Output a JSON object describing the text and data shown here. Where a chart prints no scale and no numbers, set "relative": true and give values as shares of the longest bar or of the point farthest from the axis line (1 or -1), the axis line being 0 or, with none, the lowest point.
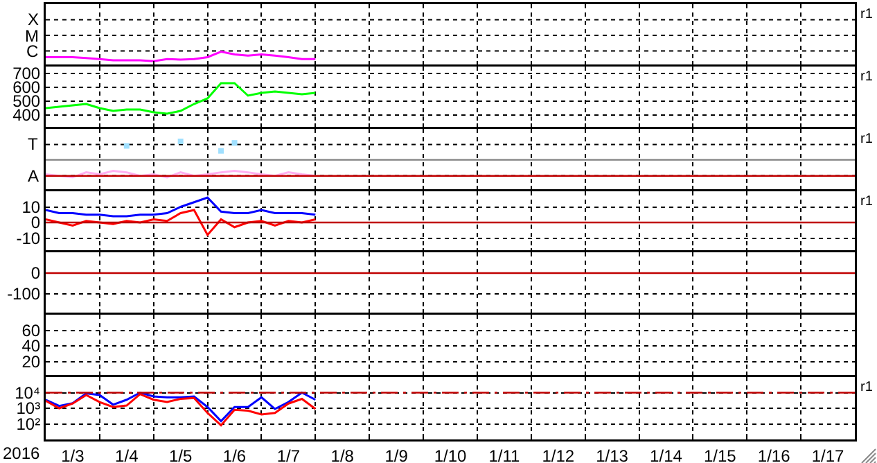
{
  "chart_data": [
    {
      "type": "line",
      "relative": true,
      "x": [
        "2016-01-03T00:00",
        "2016-01-03T06:00",
        "2016-01-03T12:00",
        "2016-01-03T18:00",
        "2016-01-04T00:00",
        "2016-01-04T06:00",
        "2016-01-04T12:00",
        "2016-01-04T18:00",
        "2016-01-05T00:00",
        "2016-01-05T06:00",
        "2016-01-05T12:00",
        "2016-01-05T18:00",
        "2016-01-06T00:00",
        "2016-01-06T06:00",
        "2016-01-06T12:00",
        "2016-01-06T18:00",
        "2016-01-07T00:00",
        "2016-01-07T06:00",
        "2016-01-07T12:00",
        "2016-01-07T18:00",
        "2016-01-08T00:00"
      ],
      "series": [
        {
          "color": "#ff00ff",
          "values": [
            0.63,
            0.63,
            0.63,
            0.57,
            0.5,
            0.42,
            0.42,
            0.42,
            0.36,
            0.5,
            0.47,
            0.5,
            0.63,
            1,
            0.82,
            0.73,
            0.82,
            0.73,
            0.63,
            0.5,
            0.5
          ]
        }
      ],
      "xlim": [
        "2016-01-03",
        "2016-01-18"
      ],
      "xticks": [
        {
          "value": "2016-01-04",
          "label": null
        },
        {
          "value": "2016-01-05",
          "label": null
        },
        {
          "value": "2016-01-06",
          "label": null
        },
        {
          "value": "2016-01-07",
          "label": null
        },
        {
          "value": "2016-01-08",
          "label": null
        },
        {
          "value": "2016-01-09",
          "label": null
        },
        {
          "value": "2016-01-10",
          "label": null
        },
        {
          "value": "2016-01-11",
          "label": null
        },
        {
          "value": "2016-01-12",
          "label": null
        },
        {
          "value": "2016-01-13",
          "label": null
        },
        {
          "value": "2016-01-14",
          "label": null
        },
        {
          "value": "2016-01-15",
          "label": null
        },
        {
          "value": "2016-01-16",
          "label": null
        },
        {
          "value": "2016-01-17",
          "label": null
        }
      ],
      "grid": true,
      "tick_labels": "y",
      "annotations": [
        "X",
        "M",
        "C",
        "r1"
      ]
    },
    {
      "type": "line",
      "x": [
        "2016-01-03T00:00",
        "2016-01-03T06:00",
        "2016-01-03T12:00",
        "2016-01-03T18:00",
        "2016-01-04T00:00",
        "2016-01-04T06:00",
        "2016-01-04T12:00",
        "2016-01-04T18:00",
        "2016-01-05T00:00",
        "2016-01-05T06:00",
        "2016-01-05T12:00",
        "2016-01-05T18:00",
        "2016-01-06T00:00",
        "2016-01-06T06:00",
        "2016-01-06T12:00",
        "2016-01-06T18:00",
        "2016-01-07T00:00",
        "2016-01-07T06:00",
        "2016-01-07T12:00",
        "2016-01-07T18:00",
        "2016-01-08T00:00"
      ],
      "series": [
        {
          "color": "#00ff00",
          "values": [
            450,
            460,
            470,
            480,
            450,
            430,
            440,
            440,
            420,
            410,
            430,
            480,
            520,
            630,
            630,
            540,
            560,
            570,
            560,
            550,
            560
          ]
        }
      ],
      "xlim": [
        "2016-01-03",
        "2016-01-18"
      ],
      "xticks": [
        {
          "value": "2016-01-04",
          "label": null
        },
        {
          "value": "2016-01-05",
          "label": null
        },
        {
          "value": "2016-01-06",
          "label": null
        },
        {
          "value": "2016-01-07",
          "label": null
        },
        {
          "value": "2016-01-08",
          "label": null
        },
        {
          "value": "2016-01-09",
          "label": null
        },
        {
          "value": "2016-01-10",
          "label": null
        },
        {
          "value": "2016-01-11",
          "label": null
        },
        {
          "value": "2016-01-12",
          "label": null
        },
        {
          "value": "2016-01-13",
          "label": null
        },
        {
          "value": "2016-01-14",
          "label": null
        },
        {
          "value": "2016-01-15",
          "label": null
        },
        {
          "value": "2016-01-16",
          "label": null
        },
        {
          "value": "2016-01-17",
          "label": null
        }
      ],
      "ylim": [
        300,
        750
      ],
      "yticks": [
        400,
        500,
        600,
        700
      ],
      "grid": true,
      "tick_labels": "y",
      "annotations": [
        "r1"
      ]
    },
    {
      "type": "line",
      "relative": true,
      "x": [
        "2016-01-03T00:00",
        "2016-01-03T06:00",
        "2016-01-03T12:00",
        "2016-01-03T18:00",
        "2016-01-04T00:00",
        "2016-01-04T06:00",
        "2016-01-04T12:00",
        "2016-01-04T18:00",
        "2016-01-05T00:00",
        "2016-01-05T06:00",
        "2016-01-05T12:00",
        "2016-01-05T18:00",
        "2016-01-06T00:00",
        "2016-01-06T06:00",
        "2016-01-06T12:00",
        "2016-01-06T18:00",
        "2016-01-07T00:00",
        "2016-01-07T06:00",
        "2016-01-07T12:00",
        "2016-01-07T18:00",
        "2016-01-08T00:00"
      ],
      "series": [
        {
          "color": "#ffb0f0",
          "values": [
            0.34,
            0.31,
            0.28,
            0.38,
            0.34,
            0.41,
            0.38,
            0.31,
            0.34,
            0.28,
            0.38,
            0.31,
            0.34,
            0.38,
            0.41,
            0.38,
            0.34,
            0.31,
            0.38,
            0.34,
            0.31
          ]
        },
        {
          "type": "scatter",
          "marker": "square",
          "color": "#a0e0ff",
          "x": [
            "2016-01-04T12:00",
            "2016-01-05T12:00",
            "2016-01-06T06:00",
            "2016-01-06T12:00"
          ],
          "values": [
            0.91,
            1,
            0.81,
            0.97
          ]
        }
      ],
      "xlim": [
        "2016-01-03",
        "2016-01-18"
      ],
      "xticks": [
        {
          "value": "2016-01-04",
          "label": null
        },
        {
          "value": "2016-01-05",
          "label": null
        },
        {
          "value": "2016-01-06",
          "label": null
        },
        {
          "value": "2016-01-07",
          "label": null
        },
        {
          "value": "2016-01-08",
          "label": null
        },
        {
          "value": "2016-01-09",
          "label": null
        },
        {
          "value": "2016-01-10",
          "label": null
        },
        {
          "value": "2016-01-11",
          "label": null
        },
        {
          "value": "2016-01-12",
          "label": null
        },
        {
          "value": "2016-01-13",
          "label": null
        },
        {
          "value": "2016-01-14",
          "label": null
        },
        {
          "value": "2016-01-15",
          "label": null
        },
        {
          "value": "2016-01-16",
          "label": null
        },
        {
          "value": "2016-01-17",
          "label": null
        }
      ],
      "ref_lines": [
        {
          "axis": "y",
          "value": 0.63,
          "color": "#808080"
        },
        {
          "axis": "y",
          "value": 0.31,
          "color": "#c00000"
        }
      ],
      "grid": true,
      "tick_labels": "y",
      "annotations": [
        "T",
        "A",
        "r1"
      ]
    },
    {
      "type": "line",
      "x": [
        "2016-01-03T00:00",
        "2016-01-03T06:00",
        "2016-01-03T12:00",
        "2016-01-03T18:00",
        "2016-01-04T00:00",
        "2016-01-04T06:00",
        "2016-01-04T12:00",
        "2016-01-04T18:00",
        "2016-01-05T00:00",
        "2016-01-05T06:00",
        "2016-01-05T12:00",
        "2016-01-05T18:00",
        "2016-01-06T00:00",
        "2016-01-06T06:00",
        "2016-01-06T12:00",
        "2016-01-06T18:00",
        "2016-01-07T00:00",
        "2016-01-07T06:00",
        "2016-01-07T12:00",
        "2016-01-07T18:00",
        "2016-01-08T00:00"
      ],
      "series": [
        {
          "color": "#0000ff",
          "values": [
            8,
            6,
            6,
            5,
            5,
            4,
            4,
            5,
            5,
            6,
            10,
            13,
            16,
            7,
            6,
            6,
            8,
            6,
            6,
            6,
            5
          ]
        },
        {
          "color": "#ff0000",
          "values": [
            2,
            0,
            -2,
            1,
            0,
            -1,
            1,
            0,
            2,
            1,
            6,
            8,
            -8,
            2,
            -3,
            0,
            1,
            -2,
            1,
            0,
            2
          ]
        }
      ],
      "xlim": [
        "2016-01-03",
        "2016-01-18"
      ],
      "xticks": [
        {
          "value": "2016-01-04",
          "label": null
        },
        {
          "value": "2016-01-05",
          "label": null
        },
        {
          "value": "2016-01-06",
          "label": null
        },
        {
          "value": "2016-01-07",
          "label": null
        },
        {
          "value": "2016-01-08",
          "label": null
        },
        {
          "value": "2016-01-09",
          "label": null
        },
        {
          "value": "2016-01-10",
          "label": null
        },
        {
          "value": "2016-01-11",
          "label": null
        },
        {
          "value": "2016-01-12",
          "label": null
        },
        {
          "value": "2016-01-13",
          "label": null
        },
        {
          "value": "2016-01-14",
          "label": null
        },
        {
          "value": "2016-01-15",
          "label": null
        },
        {
          "value": "2016-01-16",
          "label": null
        },
        {
          "value": "2016-01-17",
          "label": null
        }
      ],
      "ylim": [
        -20,
        20
      ],
      "yticks": [
        -10,
        0,
        10
      ],
      "ref_lines": [
        {
          "axis": "y",
          "value": 0,
          "color": "#c00000"
        }
      ],
      "grid": true,
      "tick_labels": "y",
      "annotations": [
        "r1"
      ]
    },
    {
      "type": "line",
      "xlim": [
        "2016-01-03",
        "2016-01-18"
      ],
      "xticks": [
        {
          "value": "2016-01-04",
          "label": null
        },
        {
          "value": "2016-01-05",
          "label": null
        },
        {
          "value": "2016-01-06",
          "label": null
        },
        {
          "value": "2016-01-07",
          "label": null
        },
        {
          "value": "2016-01-08",
          "label": null
        },
        {
          "value": "2016-01-09",
          "label": null
        },
        {
          "value": "2016-01-10",
          "label": null
        },
        {
          "value": "2016-01-11",
          "label": null
        },
        {
          "value": "2016-01-12",
          "label": null
        },
        {
          "value": "2016-01-13",
          "label": null
        },
        {
          "value": "2016-01-14",
          "label": null
        },
        {
          "value": "2016-01-15",
          "label": null
        },
        {
          "value": "2016-01-16",
          "label": null
        },
        {
          "value": "2016-01-17",
          "label": null
        }
      ],
      "ylim": [
        -200,
        100
      ],
      "yticks": [
        -100,
        0
      ],
      "ref_lines": [
        {
          "axis": "y",
          "value": 0,
          "color": "#c00000"
        }
      ],
      "grid": true,
      "tick_labels": "y"
    },
    {
      "type": "line",
      "xlim": [
        "2016-01-03",
        "2016-01-18"
      ],
      "xticks": [
        {
          "value": "2016-01-04",
          "label": null
        },
        {
          "value": "2016-01-05",
          "label": null
        },
        {
          "value": "2016-01-06",
          "label": null
        },
        {
          "value": "2016-01-07",
          "label": null
        },
        {
          "value": "2016-01-08",
          "label": null
        },
        {
          "value": "2016-01-09",
          "label": null
        },
        {
          "value": "2016-01-10",
          "label": null
        },
        {
          "value": "2016-01-11",
          "label": null
        },
        {
          "value": "2016-01-12",
          "label": null
        },
        {
          "value": "2016-01-13",
          "label": null
        },
        {
          "value": "2016-01-14",
          "label": null
        },
        {
          "value": "2016-01-15",
          "label": null
        },
        {
          "value": "2016-01-16",
          "label": null
        },
        {
          "value": "2016-01-17",
          "label": null
        }
      ],
      "ylim": [
        0,
        80
      ],
      "yticks": [
        20,
        40,
        60
      ],
      "grid": true,
      "tick_labels": "y"
    },
    {
      "type": "line",
      "log": "y",
      "xlabel": "2016",
      "x": [
        "2016-01-03T00:00",
        "2016-01-03T06:00",
        "2016-01-03T12:00",
        "2016-01-03T18:00",
        "2016-01-04T00:00",
        "2016-01-04T06:00",
        "2016-01-04T12:00",
        "2016-01-04T18:00",
        "2016-01-05T00:00",
        "2016-01-05T06:00",
        "2016-01-05T12:00",
        "2016-01-05T18:00",
        "2016-01-06T00:00",
        "2016-01-06T06:00",
        "2016-01-06T12:00",
        "2016-01-06T18:00",
        "2016-01-07T00:00",
        "2016-01-07T06:00",
        "2016-01-07T12:00",
        "2016-01-07T18:00",
        "2016-01-08T00:00"
      ],
      "series": [
        {
          "color": "#0000ff",
          "values": [
            3500,
            1400,
            2100,
            9000,
            7000,
            1700,
            3500,
            10000,
            5700,
            5000,
            5000,
            5700,
            1200,
            150,
            1200,
            1200,
            5000,
            900,
            2500,
            10000,
            3500
          ]
        },
        {
          "color": "#ff0000",
          "values": [
            3000,
            1000,
            2000,
            7000,
            2500,
            1200,
            1500,
            8000,
            3500,
            2500,
            4000,
            4500,
            500,
            80,
            800,
            700,
            400,
            500,
            2000,
            4000,
            900
          ]
        }
      ],
      "xlim": [
        "2016-01-03",
        "2016-01-18"
      ],
      "xticks": [
        {
          "value": "2016-01-03T12:00",
          "label": "1/3"
        },
        {
          "value": "2016-01-04T12:00",
          "label": "1/4"
        },
        {
          "value": "2016-01-05T12:00",
          "label": "1/5"
        },
        {
          "value": "2016-01-06T12:00",
          "label": "1/6"
        },
        {
          "value": "2016-01-07T12:00",
          "label": "1/7"
        },
        {
          "value": "2016-01-08T12:00",
          "label": "1/8"
        },
        {
          "value": "2016-01-09T12:00",
          "label": "1/9"
        },
        {
          "value": "2016-01-10T12:00",
          "label": "1/10"
        },
        {
          "value": "2016-01-11T12:00",
          "label": "1/11"
        },
        {
          "value": "2016-01-12T12:00",
          "label": "1/12"
        },
        {
          "value": "2016-01-13T12:00",
          "label": "1/13"
        },
        {
          "value": "2016-01-14T12:00",
          "label": "1/14"
        },
        {
          "value": "2016-01-15T12:00",
          "label": "1/15"
        },
        {
          "value": "2016-01-16T12:00",
          "label": "1/16"
        },
        {
          "value": "2016-01-17T12:00",
          "label": "1/17"
        },
        {
          "value": "2016-01-04",
          "label": null
        },
        {
          "value": "2016-01-05",
          "label": null
        },
        {
          "value": "2016-01-06",
          "label": null
        },
        {
          "value": "2016-01-07",
          "label": null
        },
        {
          "value": "2016-01-08",
          "label": null
        },
        {
          "value": "2016-01-09",
          "label": null
        },
        {
          "value": "2016-01-10",
          "label": null
        },
        {
          "value": "2016-01-11",
          "label": null
        },
        {
          "value": "2016-01-12",
          "label": null
        },
        {
          "value": "2016-01-13",
          "label": null
        },
        {
          "value": "2016-01-14",
          "label": null
        },
        {
          "value": "2016-01-15",
          "label": null
        },
        {
          "value": "2016-01-16",
          "label": null
        },
        {
          "value": "2016-01-17",
          "label": null
        }
      ],
      "ylim": [
        10,
        100000
      ],
      "yticks": [
        {
          "value": 100,
          "label": "10²"
        },
        {
          "value": 1000,
          "label": "10³"
        },
        {
          "value": 10000,
          "label": "10⁴"
        }
      ],
      "ref_lines": [
        {
          "axis": "y",
          "value": 10000,
          "color": "#c00000",
          "line_style": "dashed"
        }
      ],
      "grid": true,
      "annotations": [
        "r1"
      ]
    }
  ]
}
